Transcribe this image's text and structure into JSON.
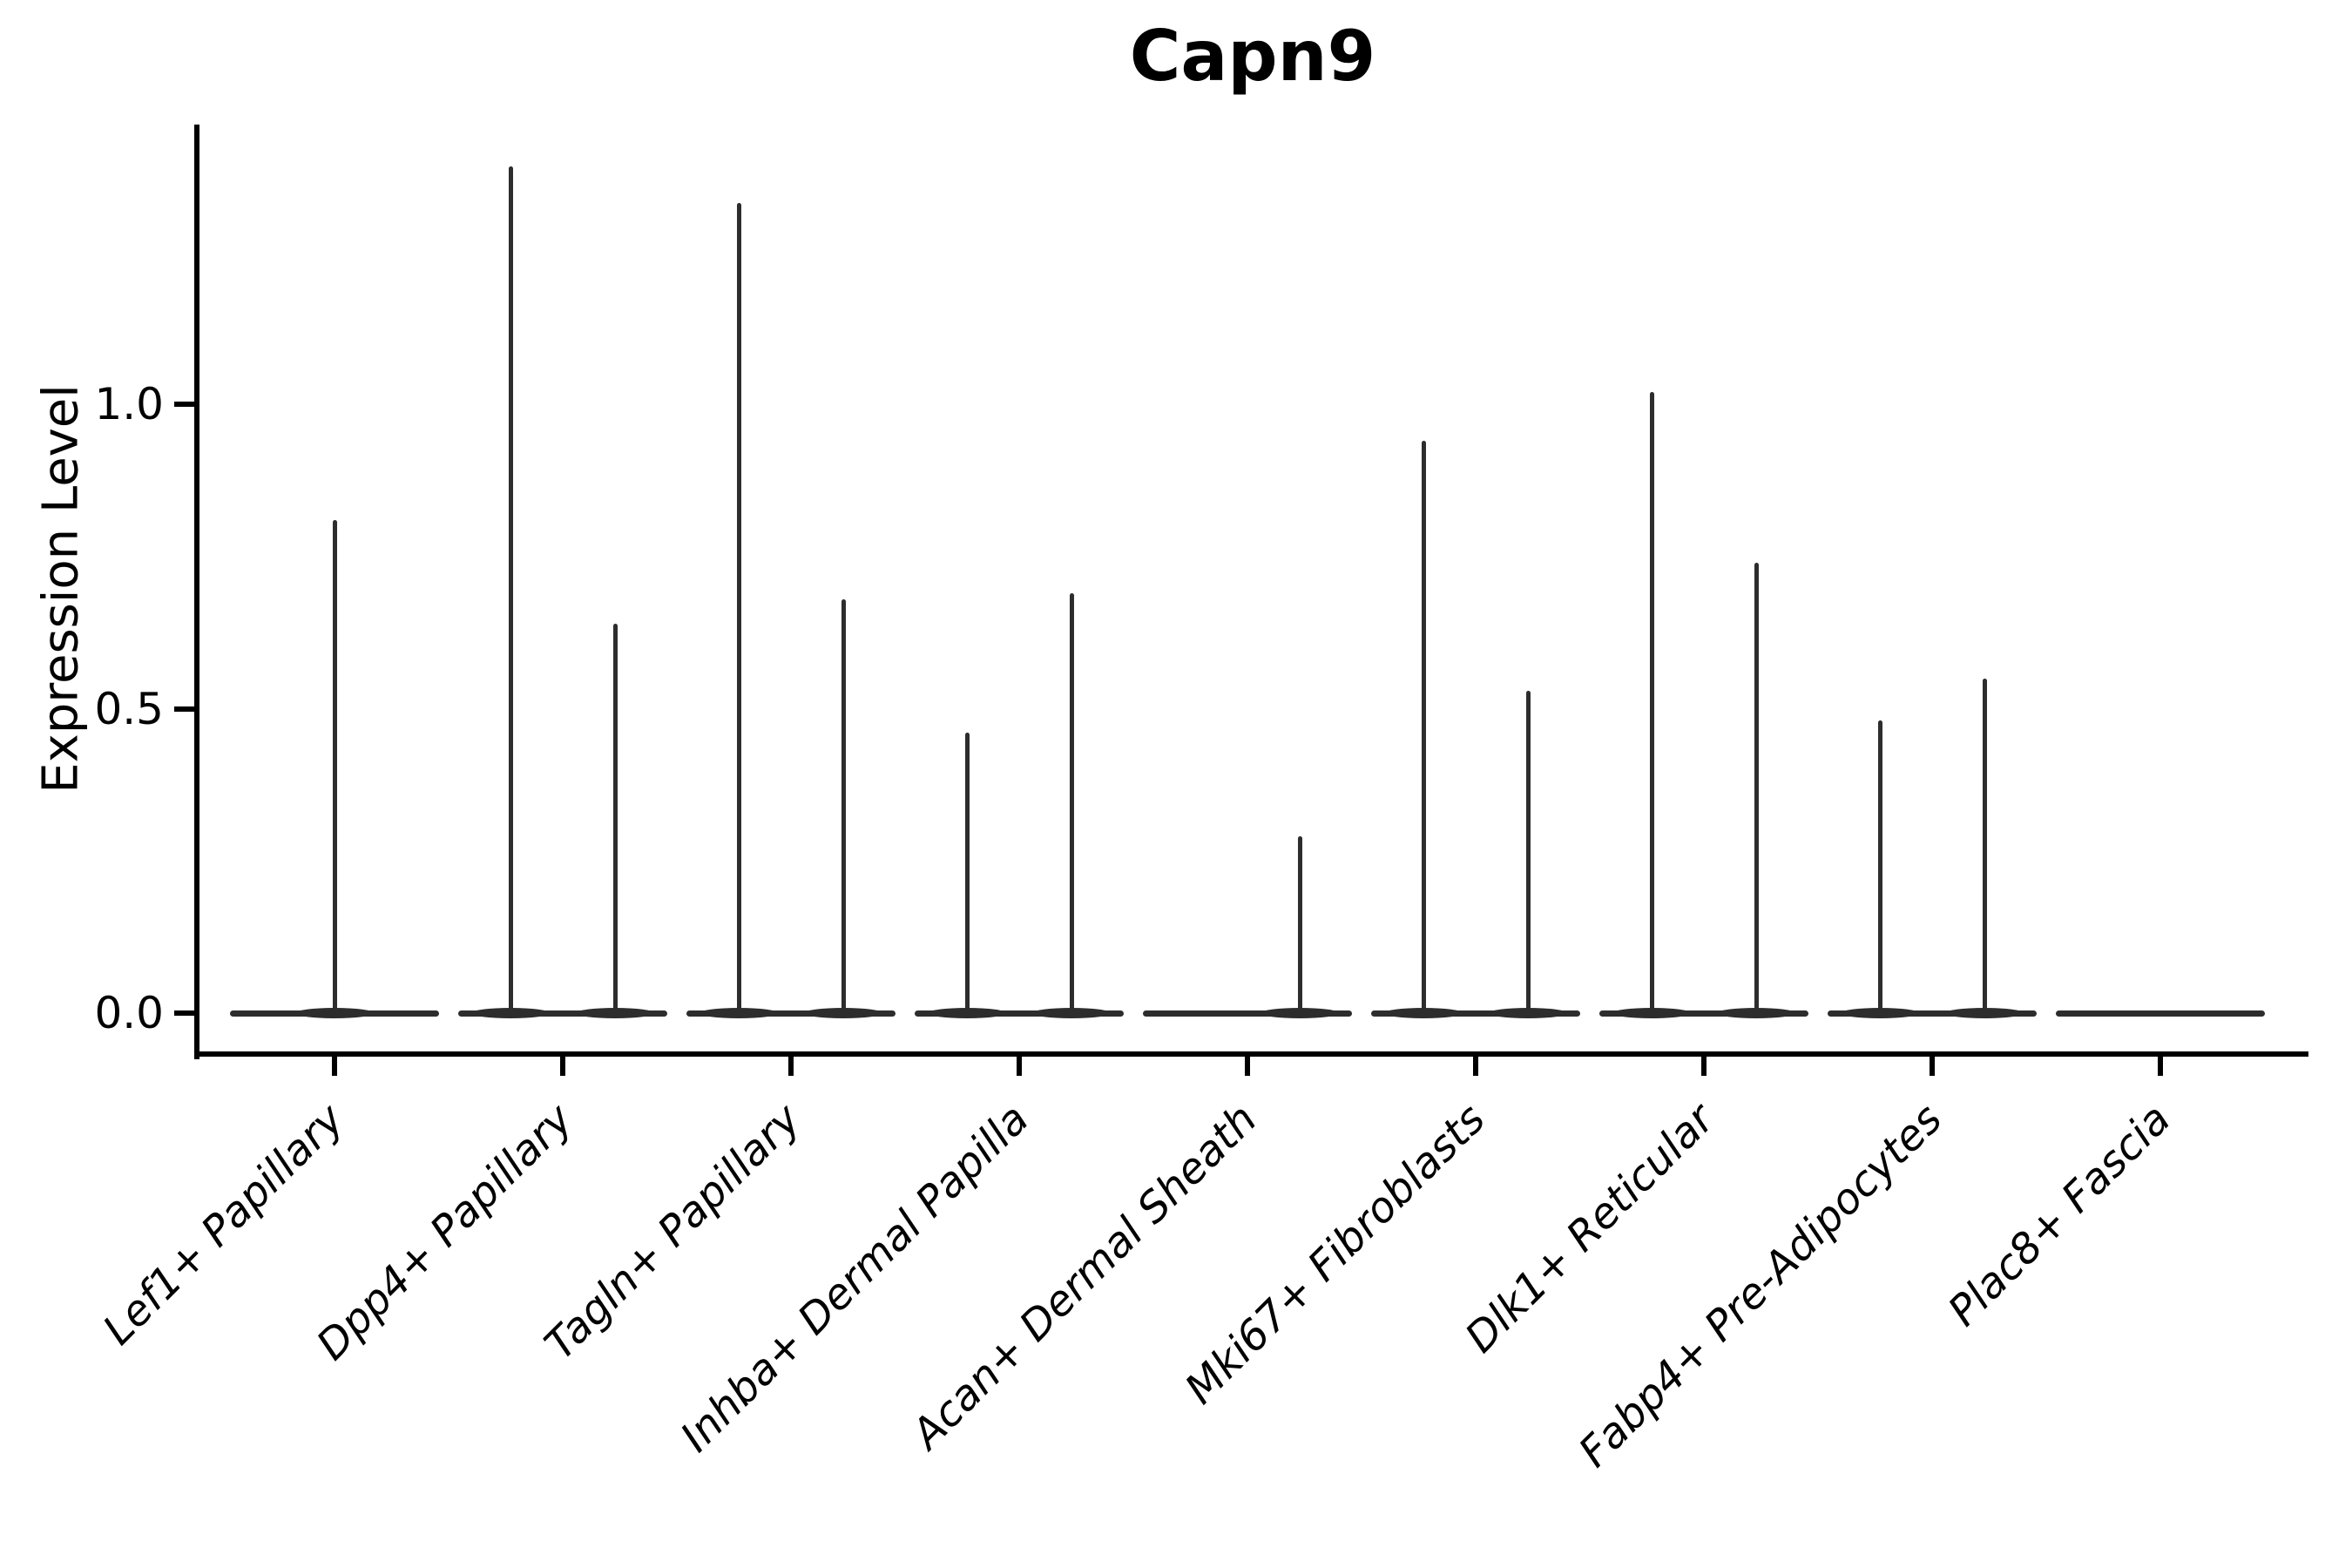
{
  "chart_data": {
    "type": "violin",
    "title": "Capn9",
    "ylabel": "Expression Level",
    "xlabel": "",
    "ylim": [
      -0.07,
      1.46
    ],
    "yticks": [
      0.0,
      0.5,
      1.0
    ],
    "ytick_labels": [
      "0.0",
      "0.5",
      "1.0"
    ],
    "grid": false,
    "legend": "none",
    "description": "Stacked violin plot of Capn9 expression; each category shows violins collapsed to a flat line at 0 with thin spikes marking the upper tail of expression. Most categories contain two side-by-side violins (left/right groups).",
    "violin_color": "#2d2d2d",
    "categories": [
      "Lef1+ Papillary",
      "Dpp4+ Papillary",
      "Tagln+ Papillary",
      "Inhba+ Dermal Papilla",
      "Acan+ Dermal Sheath",
      "Mki67+ Fibroblasts",
      "Dlk1+ Reticular",
      "Fabp4+ Pre-Adipocytes",
      "Plac8+ Fascia"
    ],
    "violins": [
      {
        "label": "Lef1+ Papillary",
        "spikes": [
          {
            "position": "center",
            "value": 0.81
          }
        ]
      },
      {
        "label": "Dpp4+ Papillary",
        "spikes": [
          {
            "position": "left",
            "value": 1.39
          },
          {
            "position": "right",
            "value": 0.64
          }
        ]
      },
      {
        "label": "Tagln+ Papillary",
        "spikes": [
          {
            "position": "left",
            "value": 1.33
          },
          {
            "position": "right",
            "value": 0.68
          }
        ]
      },
      {
        "label": "Inhba+ Dermal Papilla",
        "spikes": [
          {
            "position": "left",
            "value": 0.46
          },
          {
            "position": "right",
            "value": 0.69
          }
        ]
      },
      {
        "label": "Acan+ Dermal Sheath",
        "spikes": [
          {
            "position": "right",
            "value": 0.29
          }
        ]
      },
      {
        "label": "Mki67+ Fibroblasts",
        "spikes": [
          {
            "position": "left",
            "value": 0.94
          },
          {
            "position": "right",
            "value": 0.53
          }
        ]
      },
      {
        "label": "Dlk1+ Reticular",
        "spikes": [
          {
            "position": "left",
            "value": 1.02
          },
          {
            "position": "right",
            "value": 0.74
          }
        ]
      },
      {
        "label": "Fabp4+ Pre-Adipocytes",
        "spikes": [
          {
            "position": "left",
            "value": 0.48
          },
          {
            "position": "right",
            "value": 0.55
          }
        ]
      },
      {
        "label": "Plac8+ Fascia",
        "spikes": []
      }
    ]
  }
}
